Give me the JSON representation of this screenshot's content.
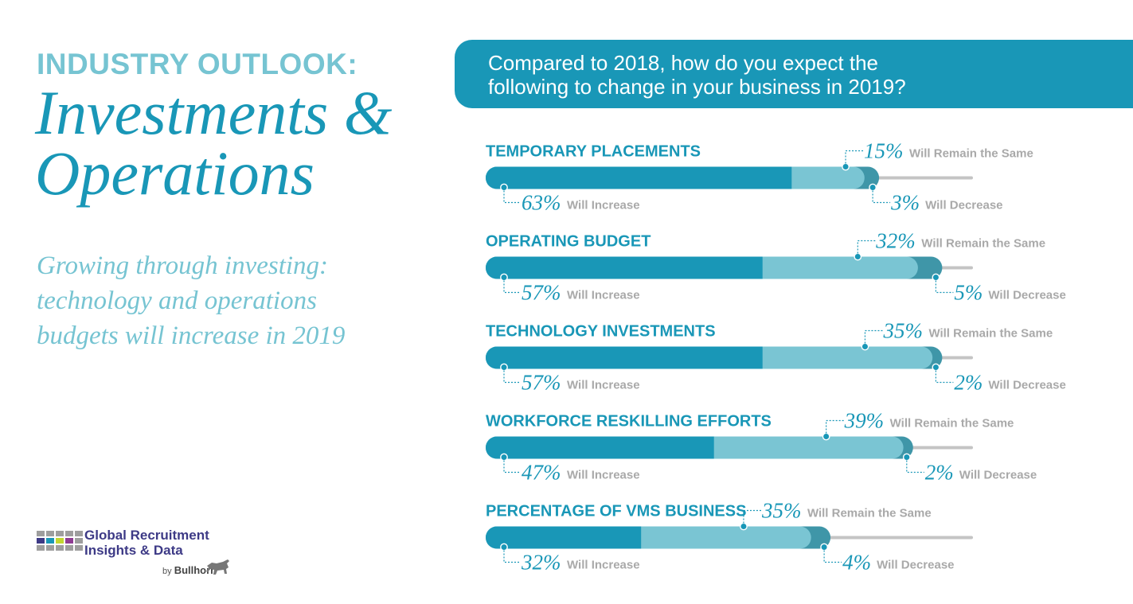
{
  "header": {
    "kicker": "INDUSTRY OUTLOOK:",
    "title_line1": "Investments &",
    "title_line2": "Operations",
    "subtitle_line1": "Growing through investing:",
    "subtitle_line2": "technology and operations",
    "subtitle_line3": "budgets will increase in 2019"
  },
  "question": {
    "line1": "Compared to 2018, how do you expect the",
    "line2": "following to change in your business in 2019?"
  },
  "brand": {
    "line1": "Global Recruitment",
    "line2": "Insights & Data",
    "by": "by",
    "company": "Bullhorn"
  },
  "colors": {
    "increase": "#1997b7",
    "same": "#7ac5d3",
    "decrease": "#3f96a8",
    "remaining": "#c4c4c4",
    "category_label": "#1997b7",
    "annotation_number": "#1997b7",
    "annotation_label": "#a9a9a9",
    "banner": "#1997b7",
    "kicker": "#76c4d2",
    "subtitle": "#76c4d2",
    "brand_text": "#3d3a86"
  },
  "chart_data": {
    "type": "bar",
    "stacked": true,
    "orientation": "horizontal",
    "title": "Compared to 2018, how do you expect the following to change in your business in 2019?",
    "categories": [
      "TEMPORARY PLACEMENTS",
      "OPERATING BUDGET",
      "TECHNOLOGY INVESTMENTS",
      "WORKFORCE RESKILLING EFFORTS",
      "PERCENTAGE OF VMS BUSINESS"
    ],
    "series": [
      {
        "name": "Will Increase",
        "values": [
          63,
          57,
          57,
          47,
          32
        ]
      },
      {
        "name": "Will Remain the Same",
        "values": [
          15,
          32,
          35,
          39,
          35
        ]
      },
      {
        "name": "Will Decrease",
        "values": [
          3,
          5,
          2,
          2,
          4
        ]
      }
    ],
    "unit": "%",
    "xlim": [
      0,
      100
    ],
    "grid": false,
    "legend": "none"
  }
}
